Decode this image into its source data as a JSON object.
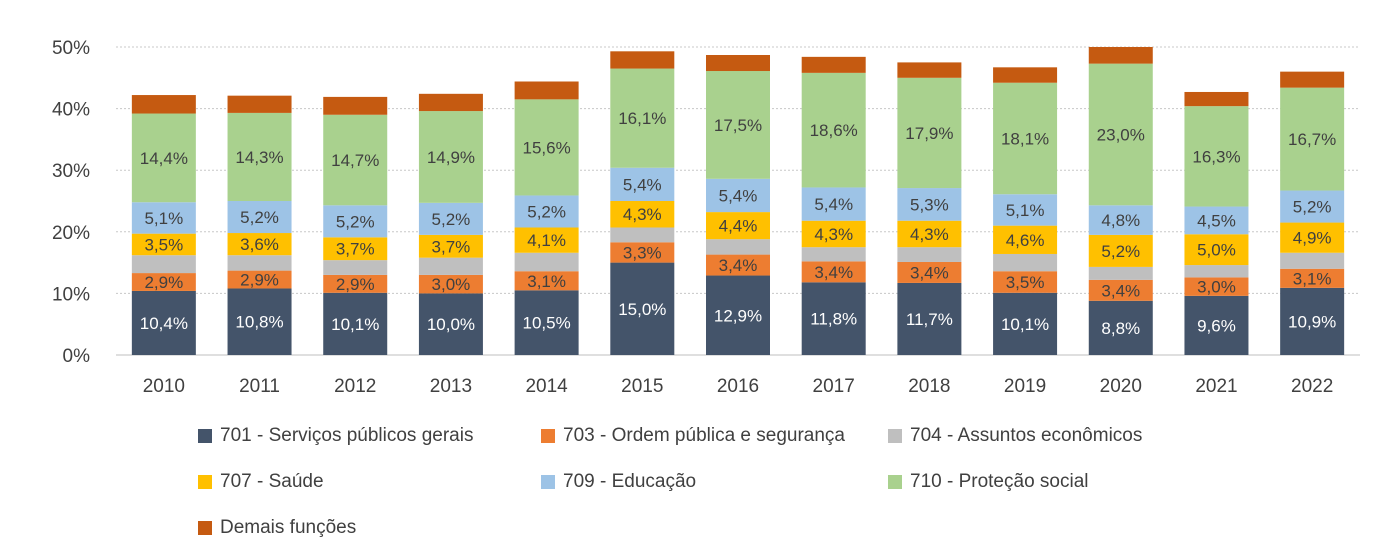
{
  "chart_data": {
    "type": "bar",
    "stacked": true,
    "categories": [
      "2010",
      "2011",
      "2012",
      "2013",
      "2014",
      "2015",
      "2016",
      "2017",
      "2018",
      "2019",
      "2020",
      "2021",
      "2022"
    ],
    "y_ticks": [
      "0%",
      "10%",
      "20%",
      "30%",
      "40%",
      "50%"
    ],
    "ylim": [
      0,
      50
    ],
    "grid": true,
    "legend_position": "bottom",
    "series": [
      {
        "name": "701 - Serviços públicos gerais",
        "color": "#44546A",
        "label_color": "#ffffff",
        "values": [
          10.4,
          10.8,
          10.1,
          10.0,
          10.5,
          15.0,
          12.9,
          11.8,
          11.7,
          10.1,
          8.8,
          9.6,
          10.9
        ],
        "labels": [
          "10,4%",
          "10,8%",
          "10,1%",
          "10,0%",
          "10,5%",
          "15,0%",
          "12,9%",
          "11,8%",
          "11,7%",
          "10,1%",
          "8,8%",
          "9,6%",
          "10,9%"
        ]
      },
      {
        "name": "703 - Ordem pública e segurança",
        "color": "#ED7D31",
        "label_color": "#404040",
        "values": [
          2.9,
          2.9,
          2.9,
          3.0,
          3.1,
          3.3,
          3.4,
          3.4,
          3.4,
          3.5,
          3.4,
          3.0,
          3.1
        ],
        "labels": [
          "2,9%",
          "2,9%",
          "2,9%",
          "3,0%",
          "3,1%",
          "3,3%",
          "3,4%",
          "3,4%",
          "3,4%",
          "3,5%",
          "3,4%",
          "3,0%",
          "3,1%"
        ]
      },
      {
        "name": "704 - Assuntos econômicos",
        "color": "#BFBFBF",
        "label_color": "#404040",
        "values": [
          2.9,
          2.5,
          2.4,
          2.8,
          3.0,
          2.4,
          2.5,
          2.3,
          2.4,
          2.8,
          2.1,
          2.0,
          2.6
        ],
        "labels": []
      },
      {
        "name": "707 - Saúde",
        "color": "#FFC000",
        "label_color": "#404040",
        "values": [
          3.5,
          3.6,
          3.7,
          3.7,
          4.1,
          4.3,
          4.4,
          4.3,
          4.3,
          4.6,
          5.2,
          5.0,
          4.9
        ],
        "labels": [
          "3,5%",
          "3,6%",
          "3,7%",
          "3,7%",
          "4,1%",
          "4,3%",
          "4,4%",
          "4,3%",
          "4,3%",
          "4,6%",
          "5,2%",
          "5,0%",
          "4,9%"
        ]
      },
      {
        "name": "709 - Educação",
        "color": "#9DC3E6",
        "label_color": "#404040",
        "values": [
          5.1,
          5.2,
          5.2,
          5.2,
          5.2,
          5.4,
          5.4,
          5.4,
          5.3,
          5.1,
          4.8,
          4.5,
          5.2
        ],
        "labels": [
          "5,1%",
          "5,2%",
          "5,2%",
          "5,2%",
          "5,2%",
          "5,4%",
          "5,4%",
          "5,4%",
          "5,3%",
          "5,1%",
          "4,8%",
          "4,5%",
          "5,2%"
        ]
      },
      {
        "name": "710 - Proteção social",
        "color": "#A9D18E",
        "label_color": "#404040",
        "values": [
          14.4,
          14.3,
          14.7,
          14.9,
          15.6,
          16.1,
          17.5,
          18.6,
          17.9,
          18.1,
          23.0,
          16.3,
          16.7
        ],
        "labels": [
          "14,4%",
          "14,3%",
          "14,7%",
          "14,9%",
          "15,6%",
          "16,1%",
          "17,5%",
          "18,6%",
          "17,9%",
          "18,1%",
          "23,0%",
          "16,3%",
          "16,7%"
        ]
      },
      {
        "name": "Demais funções",
        "color": "#C55A11",
        "label_color": "#404040",
        "values": [
          3.0,
          2.8,
          2.9,
          2.8,
          2.9,
          2.8,
          2.6,
          2.6,
          2.5,
          2.5,
          2.7,
          2.3,
          2.6
        ],
        "labels": []
      }
    ]
  }
}
